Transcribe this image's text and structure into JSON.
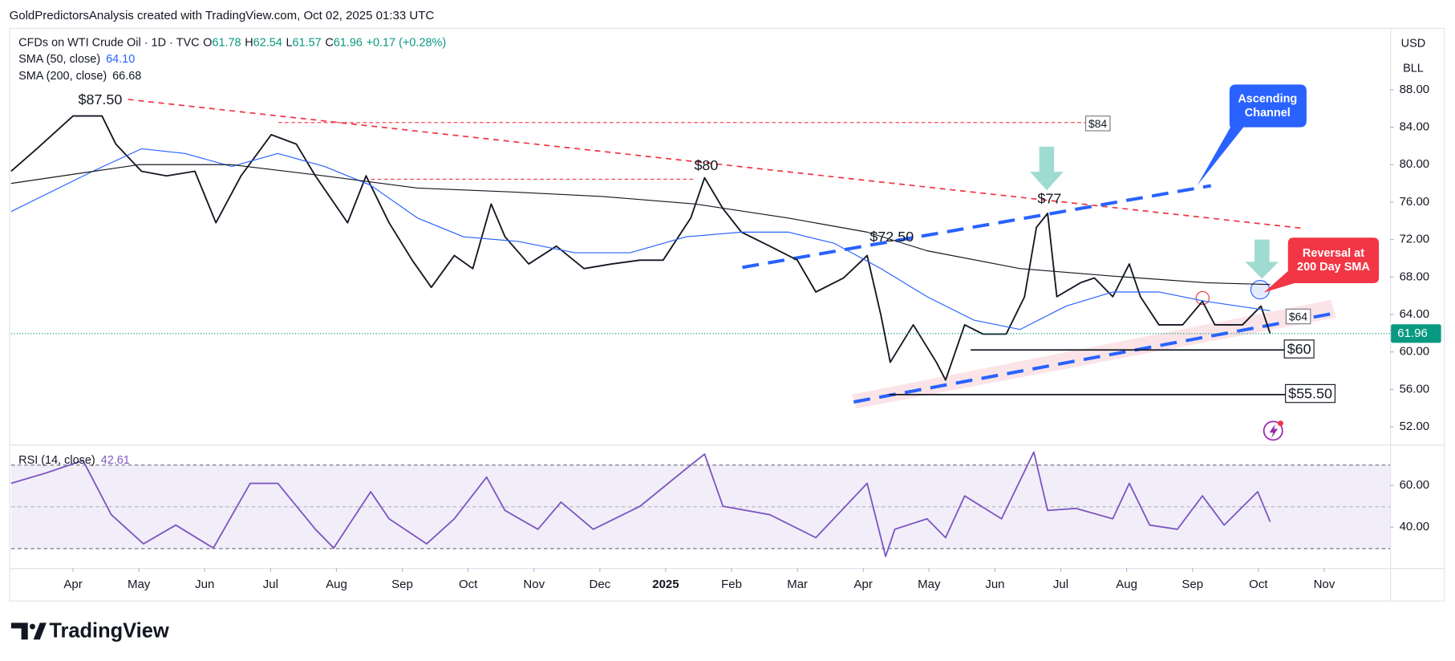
{
  "header": "GoldPredictorsAnalysis created with TradingView.com, Oct 02, 2025 01:33 UTC",
  "brand": "TradingView",
  "chart_data": [
    {
      "type": "line",
      "title": "CFDs on WTI Crude Oil · 1D · TVC",
      "ohlc": [
        {
          "label": "O",
          "value": 61.78
        },
        {
          "label": "H",
          "value": 62.54
        },
        {
          "label": "L",
          "value": 61.57
        },
        {
          "label": "C",
          "value": 61.96
        }
      ],
      "change": "+0.17 (+0.28%)",
      "currency": "USD",
      "unit": "BLL",
      "last_price": 61.96,
      "xlim": [
        -0.94,
        20.0
      ],
      "xticks": [
        {
          "value": 0,
          "label": "Apr"
        },
        {
          "value": 1,
          "label": "May"
        },
        {
          "value": 2,
          "label": "Jun"
        },
        {
          "value": 3,
          "label": "Jul"
        },
        {
          "value": 4,
          "label": "Aug"
        },
        {
          "value": 5,
          "label": "Sep"
        },
        {
          "value": 6,
          "label": "Oct"
        },
        {
          "value": 7,
          "label": "Nov"
        },
        {
          "value": 8,
          "label": "Dec"
        },
        {
          "value": 9,
          "label": "2025"
        },
        {
          "value": 10,
          "label": "Feb"
        },
        {
          "value": 11,
          "label": "Mar"
        },
        {
          "value": 12,
          "label": "Apr"
        },
        {
          "value": 13,
          "label": "May"
        },
        {
          "value": 14,
          "label": "Jun"
        },
        {
          "value": 15,
          "label": "Jul"
        },
        {
          "value": 16,
          "label": "Aug"
        },
        {
          "value": 17,
          "label": "Sep"
        },
        {
          "value": 18,
          "label": "Oct"
        },
        {
          "value": 19,
          "label": "Nov"
        }
      ],
      "ylim": [
        50.2,
        94.6
      ],
      "yticks": [
        {
          "value": 52,
          "label": "52.00"
        },
        {
          "value": 56,
          "label": "56.00"
        },
        {
          "value": 60,
          "label": "60.00"
        },
        {
          "value": 64,
          "label": "64.00"
        },
        {
          "value": 68,
          "label": "68.00"
        },
        {
          "value": 72,
          "label": "72.00"
        },
        {
          "value": 76,
          "label": "76.00"
        },
        {
          "value": 80,
          "label": "80.00"
        },
        {
          "value": 84,
          "label": "84.00"
        },
        {
          "value": 88,
          "label": "88.00"
        }
      ],
      "series": [
        {
          "color": "#131722",
          "x": [
            -0.94,
            -0.55,
            0,
            0.44,
            0.65,
            1.04,
            1.42,
            1.85,
            2.17,
            2.55,
            3.01,
            3.39,
            3.68,
            4.17,
            4.45,
            4.8,
            5.15,
            5.44,
            5.79,
            6.07,
            6.35,
            6.56,
            6.92,
            7.34,
            7.76,
            8.18,
            8.61,
            8.96,
            9.38,
            9.59,
            9.87,
            10.15,
            10.58,
            11.0,
            11.28,
            11.7,
            12.06,
            12.27,
            12.41,
            12.76,
            13.11,
            13.25,
            13.54,
            13.82,
            14.17,
            14.45,
            14.63,
            14.8,
            14.94,
            15.3,
            15.51,
            15.79,
            16.04,
            16.21,
            16.49,
            16.85,
            17.15,
            17.34,
            17.76,
            18.04,
            18.18
          ],
          "values": [
            79.3,
            81.7,
            85.2,
            85.2,
            82.2,
            79.3,
            78.8,
            79.3,
            73.8,
            78.8,
            83.2,
            82.2,
            78.8,
            73.8,
            78.8,
            73.8,
            69.8,
            66.9,
            70.3,
            68.9,
            75.8,
            72.3,
            69.4,
            71.3,
            68.9,
            69.4,
            69.8,
            69.8,
            74.3,
            78.6,
            75.3,
            72.8,
            71.3,
            69.8,
            66.4,
            67.9,
            70.3,
            63.9,
            58.9,
            62.9,
            58.9,
            57.0,
            62.9,
            61.9,
            61.9,
            65.9,
            73.3,
            74.8,
            65.9,
            67.4,
            67.9,
            65.9,
            69.4,
            65.9,
            62.9,
            62.9,
            65.4,
            62.9,
            62.9,
            64.9,
            61.96
          ]
        },
        {
          "name": "SMA (50, close)",
          "last_label": "64.10",
          "color": "#2962ff",
          "x": [
            -0.94,
            0.3,
            1.04,
            1.7,
            2.41,
            3.11,
            3.82,
            4.52,
            5.23,
            5.93,
            6.77,
            7.62,
            8.46,
            9.31,
            10.15,
            10.86,
            11.56,
            12.27,
            12.97,
            13.68,
            14.38,
            15.08,
            15.79,
            16.49,
            17.2,
            18.18
          ],
          "values": [
            75.0,
            79.3,
            81.7,
            81.2,
            79.8,
            81.2,
            79.8,
            77.8,
            74.3,
            72.3,
            71.8,
            70.6,
            70.6,
            72.3,
            72.8,
            72.8,
            71.6,
            68.9,
            65.9,
            63.4,
            62.4,
            64.9,
            66.4,
            66.4,
            65.4,
            64.4
          ]
        },
        {
          "name": "SMA (200, close)",
          "last_label": "66.68",
          "color": "#131722",
          "x": [
            -0.94,
            1.0,
            2.41,
            3.82,
            5.23,
            6.63,
            8.04,
            9.45,
            10.86,
            12.06,
            12.97,
            14.38,
            15.79,
            17.2,
            18.18
          ],
          "values": [
            78.0,
            80.0,
            80.0,
            78.8,
            77.5,
            77.1,
            76.6,
            75.8,
            74.3,
            72.8,
            70.8,
            68.9,
            68.1,
            67.4,
            67.2
          ]
        }
      ],
      "annotations": [
        {
          "text": "$87.50"
        },
        {
          "text": "$80"
        },
        {
          "text": "$77"
        },
        {
          "text": "$72.50"
        },
        {
          "text": "$84"
        },
        {
          "text": "$64"
        },
        {
          "text": "$60"
        },
        {
          "text": "$55.50"
        },
        {
          "lines": [
            "Ascending",
            "Channel"
          ]
        },
        {
          "lines": [
            "Reversal at",
            "200 Day SMA"
          ]
        }
      ]
    },
    {
      "type": "line",
      "title": "RSI (14, close)",
      "last_label": "42.61",
      "xlim": [
        -0.94,
        20.0
      ],
      "ylim": [
        20.4,
        79.1
      ],
      "yticks": [
        {
          "value": 40,
          "label": "40.00"
        },
        {
          "value": 60,
          "label": "60.00"
        }
      ],
      "series": [
        {
          "color": "#7e57c2",
          "x": [
            -0.94,
            -0.41,
            0.15,
            0.58,
            1.07,
            1.56,
            2.13,
            2.69,
            3.11,
            3.68,
            3.96,
            4.52,
            4.8,
            5.37,
            5.79,
            6.28,
            6.56,
            7.06,
            7.41,
            7.9,
            8.61,
            9.31,
            9.59,
            9.87,
            10.58,
            11.28,
            12.06,
            12.34,
            12.48,
            12.97,
            13.25,
            13.54,
            14.1,
            14.59,
            14.8,
            15.23,
            15.79,
            16.04,
            16.35,
            16.77,
            17.15,
            17.48,
            17.99,
            18.18
          ],
          "values": [
            61,
            66,
            72,
            46,
            32,
            41,
            30,
            61,
            61,
            39,
            30,
            57,
            44,
            32,
            44,
            64,
            48,
            39,
            52,
            39,
            50,
            68,
            75,
            50,
            46,
            35,
            61,
            26,
            39,
            44,
            35,
            55,
            44,
            76,
            48,
            49,
            44,
            61,
            41,
            39,
            55,
            41,
            57,
            42.6
          ]
        }
      ]
    }
  ]
}
